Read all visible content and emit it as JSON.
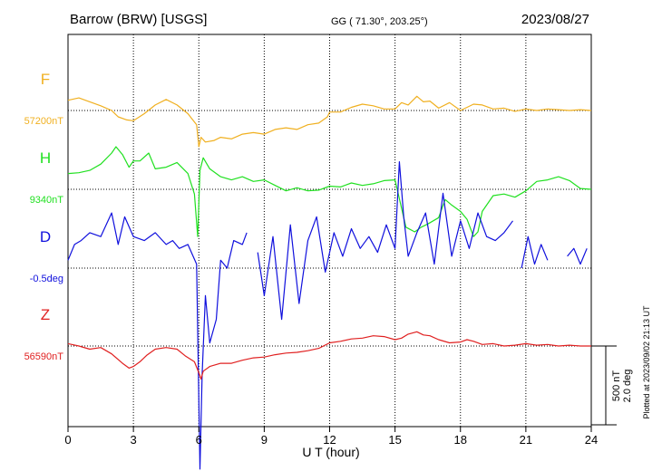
{
  "header": {
    "station": "Barrow (BRW)  [USGS]",
    "coords": "GG ( 71.30°, 203.25°)",
    "date": "2023/08/27"
  },
  "footer": {
    "plotted": "Plotted at 2023/09/02 21:13 UT",
    "scale_nt": "500 nT",
    "scale_deg": "2.0 deg"
  },
  "chart_data": {
    "type": "line",
    "xlabel": "U T (hour)",
    "xlim": [
      0,
      24
    ],
    "xticks": [
      "0",
      "3",
      "6",
      "9",
      "12",
      "15",
      "18",
      "21",
      "24"
    ],
    "grid": true,
    "series": [
      {
        "name": "F",
        "baseline_label": "57200nT",
        "color": "#f0b020",
        "unit": "nT",
        "baseline": 57200,
        "x": [
          0,
          0.5,
          1,
          1.5,
          2,
          2.3,
          2.7,
          3,
          3.5,
          4,
          4.5,
          5,
          5.5,
          5.9,
          6,
          6.1,
          6.3,
          6.7,
          7,
          7.5,
          8,
          8.5,
          9,
          9.5,
          10,
          10.5,
          11,
          11.5,
          11.9,
          12,
          12.5,
          13,
          13.5,
          14,
          14.5,
          15,
          15.3,
          15.6,
          16,
          16.3,
          16.6,
          17,
          17.5,
          18,
          18.3,
          18.6,
          19,
          19.5,
          20,
          20.5,
          21,
          21.5,
          22,
          22.5,
          23,
          23.5,
          24
        ],
        "y": [
          57265,
          57280,
          57255,
          57230,
          57200,
          57160,
          57140,
          57135,
          57180,
          57235,
          57270,
          57235,
          57180,
          57110,
          56970,
          57030,
          57000,
          57010,
          57030,
          57020,
          57050,
          57060,
          57050,
          57080,
          57090,
          57080,
          57110,
          57120,
          57160,
          57190,
          57190,
          57220,
          57240,
          57230,
          57210,
          57210,
          57250,
          57235,
          57290,
          57255,
          57260,
          57215,
          57250,
          57200,
          57220,
          57240,
          57235,
          57210,
          57215,
          57195,
          57210,
          57200,
          57210,
          57205,
          57200,
          57205,
          57200
        ]
      },
      {
        "name": "H",
        "baseline_label": "9340nT",
        "color": "#20e020",
        "unit": "nT",
        "baseline": 9340,
        "x": [
          0,
          0.5,
          1,
          1.5,
          2,
          2.2,
          2.5,
          2.8,
          3,
          3.3,
          3.7,
          4,
          4.5,
          5,
          5.5,
          5.8,
          5.95,
          6.05,
          6.2,
          6.5,
          7,
          7.5,
          8,
          8.5,
          9,
          9.5,
          10,
          10.5,
          11,
          11.5,
          12,
          12.5,
          13,
          13.5,
          14,
          14.5,
          15,
          15.2,
          15.5,
          15.9,
          16.2,
          16.5,
          17,
          17.3,
          17.6,
          18,
          18.3,
          18.6,
          18.8,
          19,
          19.5,
          20,
          20.5,
          21,
          21.5,
          22,
          22.5,
          23,
          23.5,
          24
        ],
        "y": [
          9440,
          9445,
          9460,
          9500,
          9570,
          9610,
          9560,
          9480,
          9520,
          9520,
          9570,
          9470,
          9480,
          9510,
          9440,
          9310,
          9040,
          9460,
          9540,
          9470,
          9420,
          9400,
          9420,
          9390,
          9400,
          9365,
          9330,
          9350,
          9330,
          9335,
          9360,
          9355,
          9380,
          9365,
          9375,
          9395,
          9400,
          9280,
          9100,
          9070,
          9100,
          9120,
          9160,
          9275,
          9240,
          9200,
          9150,
          9040,
          9070,
          9200,
          9300,
          9310,
          9290,
          9330,
          9390,
          9400,
          9420,
          9395,
          9345,
          9340
        ]
      },
      {
        "name": "D",
        "baseline_label": "-0.5deg",
        "color": "#1010dd",
        "unit": "deg",
        "baseline": -0.5,
        "x": [
          0,
          0.3,
          0.6,
          1,
          1.5,
          2,
          2.3,
          2.6,
          3,
          3.5,
          4,
          4.5,
          4.8,
          5.1,
          5.5,
          5.9,
          6.05,
          6.15,
          6.3,
          6.5,
          6.8,
          7,
          7.3,
          7.6,
          8,
          8.2,
          null,
          8.7,
          9,
          9.4,
          9.8,
          10.2,
          10.6,
          11,
          11.4,
          11.8,
          12.2,
          12.6,
          13,
          13.4,
          13.8,
          14.2,
          14.6,
          15,
          15.2,
          15.4,
          15.6,
          16,
          16.4,
          16.8,
          17.2,
          17.6,
          18,
          18.4,
          18.8,
          19.2,
          19.6,
          20,
          20.4,
          null,
          20.8,
          21.1,
          21.4,
          21.7,
          22,
          null,
          22.9,
          23.2,
          23.5,
          23.8
        ],
        "y": [
          -0.3,
          0.1,
          0.2,
          0.4,
          0.3,
          0.9,
          0.1,
          0.8,
          0.3,
          0.2,
          0.4,
          0.1,
          0.2,
          0.0,
          0.1,
          -0.4,
          -5.6,
          -3.2,
          -1.2,
          -2.4,
          -1.8,
          -0.3,
          -0.5,
          0.2,
          0.1,
          0.4,
          null,
          -0.1,
          -1.2,
          0.3,
          -1.8,
          0.6,
          -1.4,
          0.2,
          0.8,
          -0.6,
          0.4,
          -0.2,
          0.5,
          0.0,
          0.3,
          -0.1,
          0.6,
          0.0,
          2.2,
          0.8,
          -0.2,
          0.4,
          0.9,
          -0.4,
          1.4,
          -0.2,
          0.7,
          0.0,
          0.9,
          0.3,
          0.2,
          0.4,
          0.7,
          null,
          -0.5,
          0.3,
          -0.4,
          0.1,
          -0.3,
          null,
          -0.2,
          0.0,
          -0.4,
          0.0
        ]
      },
      {
        "name": "Z",
        "baseline_label": "56590nT",
        "color": "#e02020",
        "unit": "nT",
        "baseline": 56590,
        "x": [
          0,
          0.5,
          1,
          1.5,
          2,
          2.5,
          2.8,
          3,
          3.3,
          3.6,
          4,
          4.5,
          5,
          5.4,
          5.8,
          6,
          6.1,
          6.2,
          6.5,
          7,
          7.5,
          8,
          8.5,
          9,
          9.5,
          10,
          10.5,
          11,
          11.5,
          12,
          12.5,
          13,
          13.5,
          14,
          14.5,
          15,
          15.3,
          15.6,
          16,
          16.3,
          16.6,
          17,
          17.5,
          18,
          18.3,
          18.6,
          19,
          19.5,
          20,
          20.5,
          21,
          21.5,
          22,
          22.5,
          23,
          23.5,
          24
        ],
        "y": [
          56605,
          56590,
          56570,
          56580,
          56540,
          56480,
          56450,
          56460,
          56490,
          56530,
          56570,
          56580,
          56570,
          56525,
          56490,
          56420,
          56380,
          56430,
          56460,
          56480,
          56480,
          56500,
          56515,
          56520,
          56535,
          56545,
          56550,
          56560,
          56575,
          56610,
          56620,
          56635,
          56640,
          56655,
          56650,
          56630,
          56640,
          56665,
          56680,
          56660,
          56655,
          56630,
          56610,
          56615,
          56630,
          56620,
          56600,
          56605,
          56590,
          56595,
          56605,
          56595,
          56600,
          56590,
          56595,
          56590,
          56590
        ]
      }
    ]
  }
}
